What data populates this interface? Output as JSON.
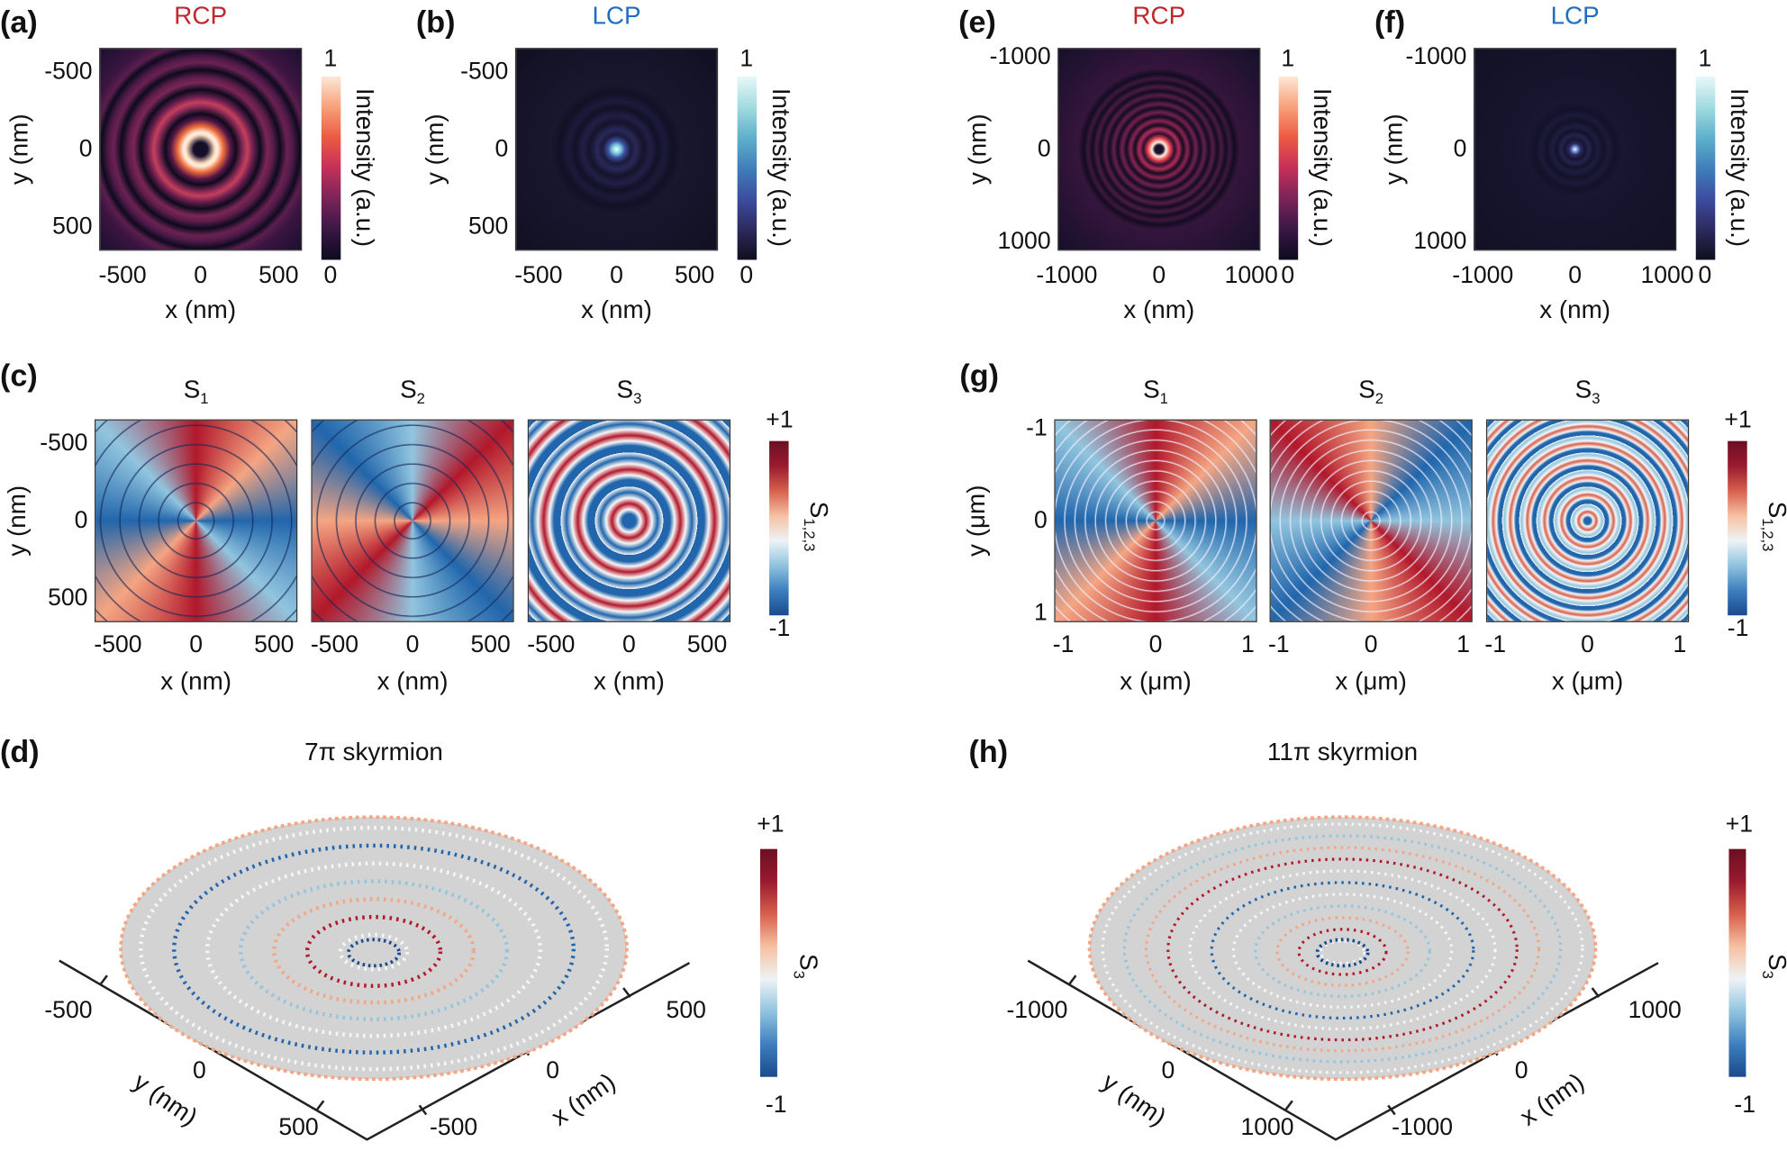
{
  "panels": {
    "a": {
      "label": "(a)",
      "title": "RCP",
      "title_color": "#c0272d",
      "xlabel": "x (nm)",
      "ylabel": "y (nm)",
      "range": [
        -650,
        650
      ],
      "xticks": [
        "-500",
        "0",
        "500"
      ],
      "yticks": [
        "-500",
        "0",
        "500"
      ],
      "cbar_label": "Intensity (a.u.)",
      "cbar_max": "1",
      "cbar_min": "0"
    },
    "b": {
      "label": "(b)",
      "title": "LCP",
      "title_color": "#1f6fc0",
      "xlabel": "x (nm)",
      "ylabel": "y (nm)",
      "range": [
        -650,
        650
      ],
      "xticks": [
        "-500",
        "0",
        "500"
      ],
      "yticks": [
        "-500",
        "0",
        "500"
      ],
      "cbar_label": "Intensity (a.u.)",
      "cbar_max": "1",
      "cbar_min": "0"
    },
    "e": {
      "label": "(e)",
      "title": "RCP",
      "title_color": "#c0272d",
      "xlabel": "x (nm)",
      "ylabel": "y (nm)",
      "range": [
        -1100,
        1100
      ],
      "xticks": [
        "-1000",
        "0",
        "1000"
      ],
      "yticks": [
        "-1000",
        "0",
        "1000"
      ],
      "cbar_label": "Intensity (a.u.)",
      "cbar_max": "1",
      "cbar_min": "0"
    },
    "f": {
      "label": "(f)",
      "title": "LCP",
      "title_color": "#1f6fc0",
      "xlabel": "x (nm)",
      "ylabel": "y (nm)",
      "range": [
        -1100,
        1100
      ],
      "xticks": [
        "-1000",
        "0",
        "1000"
      ],
      "yticks": [
        "-1000",
        "0",
        "1000"
      ],
      "cbar_label": "Intensity (a.u.)",
      "cbar_max": "1",
      "cbar_min": "0"
    },
    "c": {
      "label": "(c)",
      "titles": [
        "S",
        "S",
        "S"
      ],
      "subs": [
        "1",
        "2",
        "3"
      ],
      "xlabel": "x (nm)",
      "ylabel": "y (nm)",
      "range": [
        -650,
        650
      ],
      "xticks": [
        "-500",
        "0",
        "500"
      ],
      "yticks": [
        "-500",
        "0",
        "500"
      ],
      "cbar_label": "S",
      "cbar_sub": "1,2,3",
      "cbar_max": "+1",
      "cbar_min": "-1"
    },
    "g": {
      "label": "(g)",
      "titles": [
        "S",
        "S",
        "S"
      ],
      "subs": [
        "1",
        "2",
        "3"
      ],
      "xlabel": "x (μm)",
      "ylabel": "y (μm)",
      "range": [
        -1.1,
        1.1
      ],
      "xticks": [
        "-1",
        "0",
        "1"
      ],
      "yticks": [
        "-1",
        "0",
        "1"
      ],
      "cbar_label": "S",
      "cbar_sub": "1,2,3",
      "cbar_max": "+1",
      "cbar_min": "-1"
    },
    "d": {
      "label": "(d)",
      "title": "7π skyrmion",
      "xlabel": "x (nm)",
      "ylabel": "y (nm)",
      "yticks": [
        "-500",
        "0",
        "500"
      ],
      "xticks": [
        "500",
        "0",
        "-500"
      ],
      "cbar_label": "S",
      "cbar_sub": "3",
      "cbar_max": "+1",
      "cbar_min": "-1",
      "rings": 7
    },
    "h": {
      "label": "(h)",
      "title": "11π skyrmion",
      "xlabel": "x (nm)",
      "ylabel": "y (nm)",
      "yticks": [
        "-1000",
        "0",
        "1000"
      ],
      "xticks": [
        "1000",
        "0",
        "-1000"
      ],
      "cbar_label": "S",
      "cbar_sub": "3",
      "cbar_max": "+1",
      "cbar_min": "-1",
      "rings": 11
    }
  },
  "colors": {
    "red": "#b2182b",
    "blue": "#2166ac",
    "disk": "#d3d3d3"
  }
}
